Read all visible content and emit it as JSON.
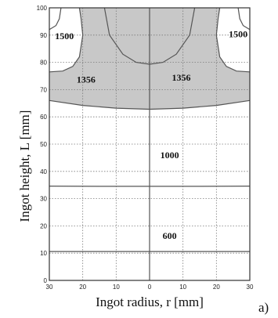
{
  "chart_data": {
    "type": "contour",
    "title": "",
    "xlabel": "Ingot radius, r [mm]",
    "ylabel": "Ingot height, L [mm]",
    "panel_label": "a)",
    "x_ticks": [
      "30",
      "20",
      "10",
      "0",
      "10",
      "20",
      "30"
    ],
    "y_ticks": [
      "0",
      "10",
      "20",
      "30",
      "40",
      "50",
      "60",
      "70",
      "80",
      "90",
      "100"
    ],
    "xlim": [
      -30,
      30
    ],
    "ylim": [
      0,
      100
    ],
    "grid": true,
    "shaded_region_color": "#c8c8c8",
    "isotherms": [
      {
        "label": "600",
        "points": [
          [
            -30,
            10.6
          ],
          [
            -15,
            10.6
          ],
          [
            0,
            10.6
          ],
          [
            15,
            10.6
          ],
          [
            30,
            10.6
          ]
        ]
      },
      {
        "label": "1000",
        "points": [
          [
            -30,
            34.6
          ],
          [
            -15,
            34.5
          ],
          [
            0,
            34.5
          ],
          [
            15,
            34.5
          ],
          [
            30,
            34.6
          ]
        ]
      },
      {
        "label": "1356",
        "points": [
          [
            -30,
            66
          ],
          [
            -20,
            64.2
          ],
          [
            -10,
            63.2
          ],
          [
            0,
            62.8
          ],
          [
            10,
            63.2
          ],
          [
            20,
            64.2
          ],
          [
            30,
            66
          ]
        ]
      },
      {
        "label": "1356",
        "points": [
          [
            -30,
            76.5
          ],
          [
            -26,
            76.8
          ],
          [
            -23,
            78.5
          ],
          [
            -21,
            82
          ],
          [
            -20,
            90
          ],
          [
            -20.5,
            96
          ],
          [
            -21,
            100
          ]
        ]
      },
      {
        "label": "1356",
        "points": [
          [
            30,
            76.5
          ],
          [
            26,
            76.8
          ],
          [
            23,
            78.5
          ],
          [
            21,
            82
          ],
          [
            20,
            90
          ],
          [
            20.5,
            96
          ],
          [
            21,
            100
          ]
        ]
      },
      {
        "label": "1356",
        "points": [
          [
            -13.5,
            100
          ],
          [
            -12,
            90
          ],
          [
            -8,
            83
          ],
          [
            -4,
            80
          ],
          [
            0,
            79.3
          ],
          [
            4,
            80
          ],
          [
            8,
            83
          ],
          [
            12,
            90
          ],
          [
            13.5,
            100
          ]
        ]
      },
      {
        "label": "1500",
        "points": [
          [
            -30,
            92
          ],
          [
            -28,
            93.5
          ],
          [
            -27,
            96
          ],
          [
            -26.5,
            100
          ]
        ]
      },
      {
        "label": "1500",
        "points": [
          [
            30,
            92
          ],
          [
            28,
            93.5
          ],
          [
            27,
            96
          ],
          [
            26.5,
            100
          ]
        ]
      }
    ],
    "isotherm_labels": [
      {
        "text": "1500",
        "x": -25.5,
        "y": 88.5
      },
      {
        "text": "1500",
        "x": 26.5,
        "y": 89.2
      },
      {
        "text": "1356",
        "x": -19,
        "y": 72.6
      },
      {
        "text": "1356",
        "x": 9.5,
        "y": 73.3
      },
      {
        "text": "1000",
        "x": 6,
        "y": 44.8
      },
      {
        "text": "600",
        "x": 6,
        "y": 15.3
      }
    ]
  }
}
